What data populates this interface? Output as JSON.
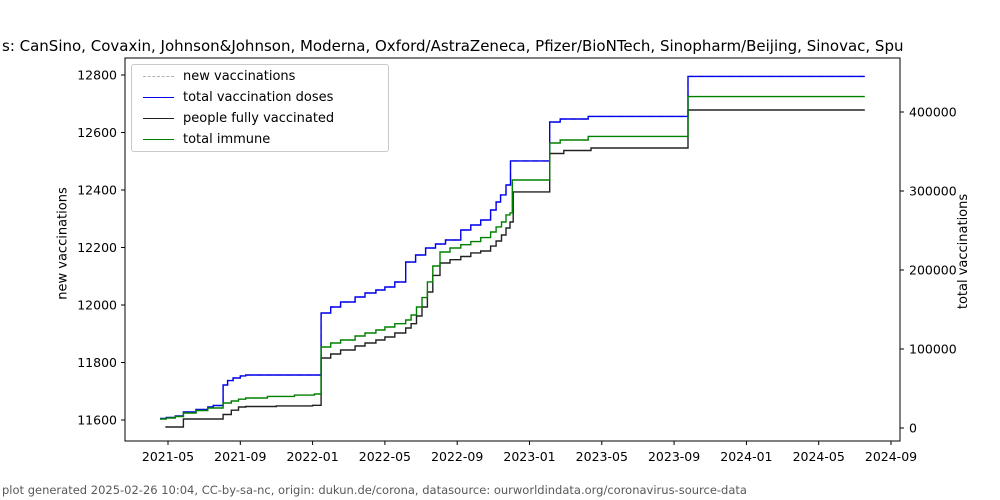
{
  "title": "s: CanSino, Covaxin, Johnson&Johnson, Moderna, Oxford/AstraZeneca, Pfizer/BioNTech, Sinopharm/Beijing, Sinovac, Spu",
  "footer": "plot generated 2025-02-26 10:04, CC-by-sa-nc, origin: dukun.de/corona, datasource: ourworldindata.org/coronavirus-source-data",
  "chart_data": {
    "type": "line",
    "step": "post",
    "grid": false,
    "legend_position": "upper left",
    "x_axis": {
      "unit": "months since 2021-01",
      "tick_positions": [
        4,
        8,
        12,
        16,
        20,
        24,
        28,
        32,
        36,
        40,
        44
      ],
      "ticks": [
        "2021-05",
        "2021-09",
        "2022-01",
        "2022-05",
        "2022-09",
        "2023-01",
        "2023-05",
        "2023-09",
        "2024-01",
        "2024-05",
        "2024-09"
      ],
      "range_months": [
        1.6,
        44.5
      ]
    },
    "y_axis_left": {
      "label": "new vaccinations",
      "ticks": [
        11600,
        11800,
        12000,
        12200,
        12400,
        12600,
        12800
      ],
      "range": [
        11527,
        12862
      ]
    },
    "y_axis_right": {
      "label": "total vaccinations",
      "ticks": [
        0,
        100000,
        200000,
        300000,
        400000
      ],
      "range": [
        -16500,
        468400
      ]
    },
    "series": [
      {
        "name": "new-vaccinations",
        "label": "new vaccinations",
        "color": "#b3b3b3",
        "linestyle": "dashed",
        "axis": "left",
        "points": [
          [
            3.56,
            11605
          ],
          [
            3.9,
            11609
          ],
          [
            4.4,
            11614
          ],
          [
            4.85,
            11628
          ],
          [
            5.55,
            11636
          ],
          [
            6.2,
            11645
          ],
          [
            6.5,
            11650
          ],
          [
            7.05,
            11722
          ],
          [
            7.3,
            11737
          ],
          [
            7.6,
            11746
          ],
          [
            8.0,
            11753
          ],
          [
            8.3,
            11756
          ],
          [
            12.47,
            11972
          ],
          [
            13.0,
            11993
          ],
          [
            13.55,
            12010
          ],
          [
            14.35,
            12028
          ],
          [
            14.9,
            12042
          ],
          [
            15.5,
            12052
          ],
          [
            16.0,
            12063
          ],
          [
            16.55,
            12080
          ],
          [
            17.15,
            12149
          ],
          [
            17.7,
            12174
          ],
          [
            18.25,
            12198
          ],
          [
            18.8,
            12212
          ],
          [
            19.35,
            12226
          ],
          [
            20.2,
            12261
          ],
          [
            20.75,
            12278
          ],
          [
            21.3,
            12295
          ],
          [
            21.85,
            12330
          ],
          [
            22.15,
            12358
          ],
          [
            22.4,
            12383
          ],
          [
            22.7,
            12417
          ],
          [
            22.95,
            12501
          ],
          [
            25.12,
            12636
          ],
          [
            25.7,
            12647
          ],
          [
            27.25,
            12656
          ],
          [
            32.77,
            12795
          ],
          [
            42.55,
            12795
          ]
        ]
      },
      {
        "name": "total-vaccination-doses",
        "label": "total vaccination doses",
        "color": "#0000ee",
        "linestyle": "solid",
        "axis": "right",
        "points": [
          [
            3.56,
            12000
          ],
          [
            3.9,
            13300
          ],
          [
            4.4,
            15200
          ],
          [
            4.85,
            20300
          ],
          [
            5.55,
            23400
          ],
          [
            6.2,
            26600
          ],
          [
            6.5,
            28500
          ],
          [
            7.05,
            54400
          ],
          [
            7.3,
            60000
          ],
          [
            7.6,
            63300
          ],
          [
            8.0,
            66000
          ],
          [
            8.3,
            67100
          ],
          [
            12.47,
            145600
          ],
          [
            13.0,
            153200
          ],
          [
            13.55,
            159500
          ],
          [
            14.35,
            165800
          ],
          [
            14.9,
            170900
          ],
          [
            15.5,
            174700
          ],
          [
            16.0,
            178500
          ],
          [
            16.55,
            184800
          ],
          [
            17.15,
            210100
          ],
          [
            17.7,
            219000
          ],
          [
            18.25,
            227800
          ],
          [
            18.8,
            232900
          ],
          [
            19.35,
            238000
          ],
          [
            20.2,
            250600
          ],
          [
            20.75,
            257000
          ],
          [
            21.3,
            263300
          ],
          [
            21.85,
            276000
          ],
          [
            22.15,
            286100
          ],
          [
            22.4,
            295000
          ],
          [
            22.7,
            307600
          ],
          [
            22.95,
            338100
          ],
          [
            25.12,
            387300
          ],
          [
            25.7,
            391100
          ],
          [
            27.25,
            394400
          ],
          [
            32.77,
            445000
          ],
          [
            42.55,
            445000
          ]
        ]
      },
      {
        "name": "people-fully-vaccinated",
        "label": "people fully vaccinated",
        "color": "#222222",
        "linestyle": "solid",
        "axis": "right",
        "points": [
          [
            3.85,
            1300
          ],
          [
            4.85,
            11400
          ],
          [
            7.05,
            17100
          ],
          [
            7.5,
            22500
          ],
          [
            7.9,
            26600
          ],
          [
            8.3,
            27200
          ],
          [
            10.0,
            28000
          ],
          [
            12.0,
            28700
          ],
          [
            12.47,
            88600
          ],
          [
            13.0,
            93700
          ],
          [
            13.55,
            98700
          ],
          [
            14.35,
            103800
          ],
          [
            14.9,
            107600
          ],
          [
            15.5,
            111400
          ],
          [
            16.0,
            115200
          ],
          [
            16.55,
            120300
          ],
          [
            17.15,
            126600
          ],
          [
            17.45,
            132000
          ],
          [
            17.75,
            141800
          ],
          [
            18.05,
            153200
          ],
          [
            18.35,
            172100
          ],
          [
            18.65,
            193200
          ],
          [
            19.05,
            208900
          ],
          [
            19.6,
            213000
          ],
          [
            20.2,
            217100
          ],
          [
            20.75,
            221600
          ],
          [
            21.3,
            224100
          ],
          [
            21.85,
            230200
          ],
          [
            22.15,
            236700
          ],
          [
            22.45,
            244300
          ],
          [
            22.7,
            253200
          ],
          [
            22.92,
            260800
          ],
          [
            23.1,
            298800
          ],
          [
            25.12,
            347500
          ],
          [
            25.9,
            351300
          ],
          [
            27.4,
            354400
          ],
          [
            32.77,
            402500
          ],
          [
            42.55,
            402500
          ]
        ]
      },
      {
        "name": "total-immune",
        "label": "total immune",
        "color": "#008000",
        "linestyle": "solid",
        "axis": "right",
        "points": [
          [
            3.56,
            11400
          ],
          [
            3.9,
            12700
          ],
          [
            4.4,
            14600
          ],
          [
            4.85,
            19000
          ],
          [
            5.55,
            22200
          ],
          [
            6.2,
            25300
          ],
          [
            7.05,
            31650
          ],
          [
            7.5,
            34200
          ],
          [
            7.9,
            36500
          ],
          [
            8.3,
            38000
          ],
          [
            9.5,
            40000
          ],
          [
            11.0,
            41700
          ],
          [
            12.1,
            43000
          ],
          [
            12.47,
            102500
          ],
          [
            13.0,
            107600
          ],
          [
            13.55,
            111400
          ],
          [
            14.35,
            116500
          ],
          [
            14.9,
            120200
          ],
          [
            15.5,
            124000
          ],
          [
            16.0,
            127900
          ],
          [
            16.55,
            132000
          ],
          [
            17.15,
            136700
          ],
          [
            17.45,
            143000
          ],
          [
            17.75,
            153200
          ],
          [
            18.05,
            165000
          ],
          [
            18.35,
            184900
          ],
          [
            18.65,
            205100
          ],
          [
            19.05,
            222800
          ],
          [
            19.6,
            227900
          ],
          [
            20.2,
            232000
          ],
          [
            20.75,
            236000
          ],
          [
            21.3,
            241000
          ],
          [
            21.85,
            248100
          ],
          [
            22.15,
            254500
          ],
          [
            22.45,
            260800
          ],
          [
            22.7,
            269700
          ],
          [
            22.92,
            272300
          ],
          [
            23.05,
            313900
          ],
          [
            25.12,
            360800
          ],
          [
            25.7,
            364600
          ],
          [
            27.25,
            369100
          ],
          [
            32.77,
            419500
          ],
          [
            42.55,
            419500
          ]
        ]
      }
    ]
  }
}
